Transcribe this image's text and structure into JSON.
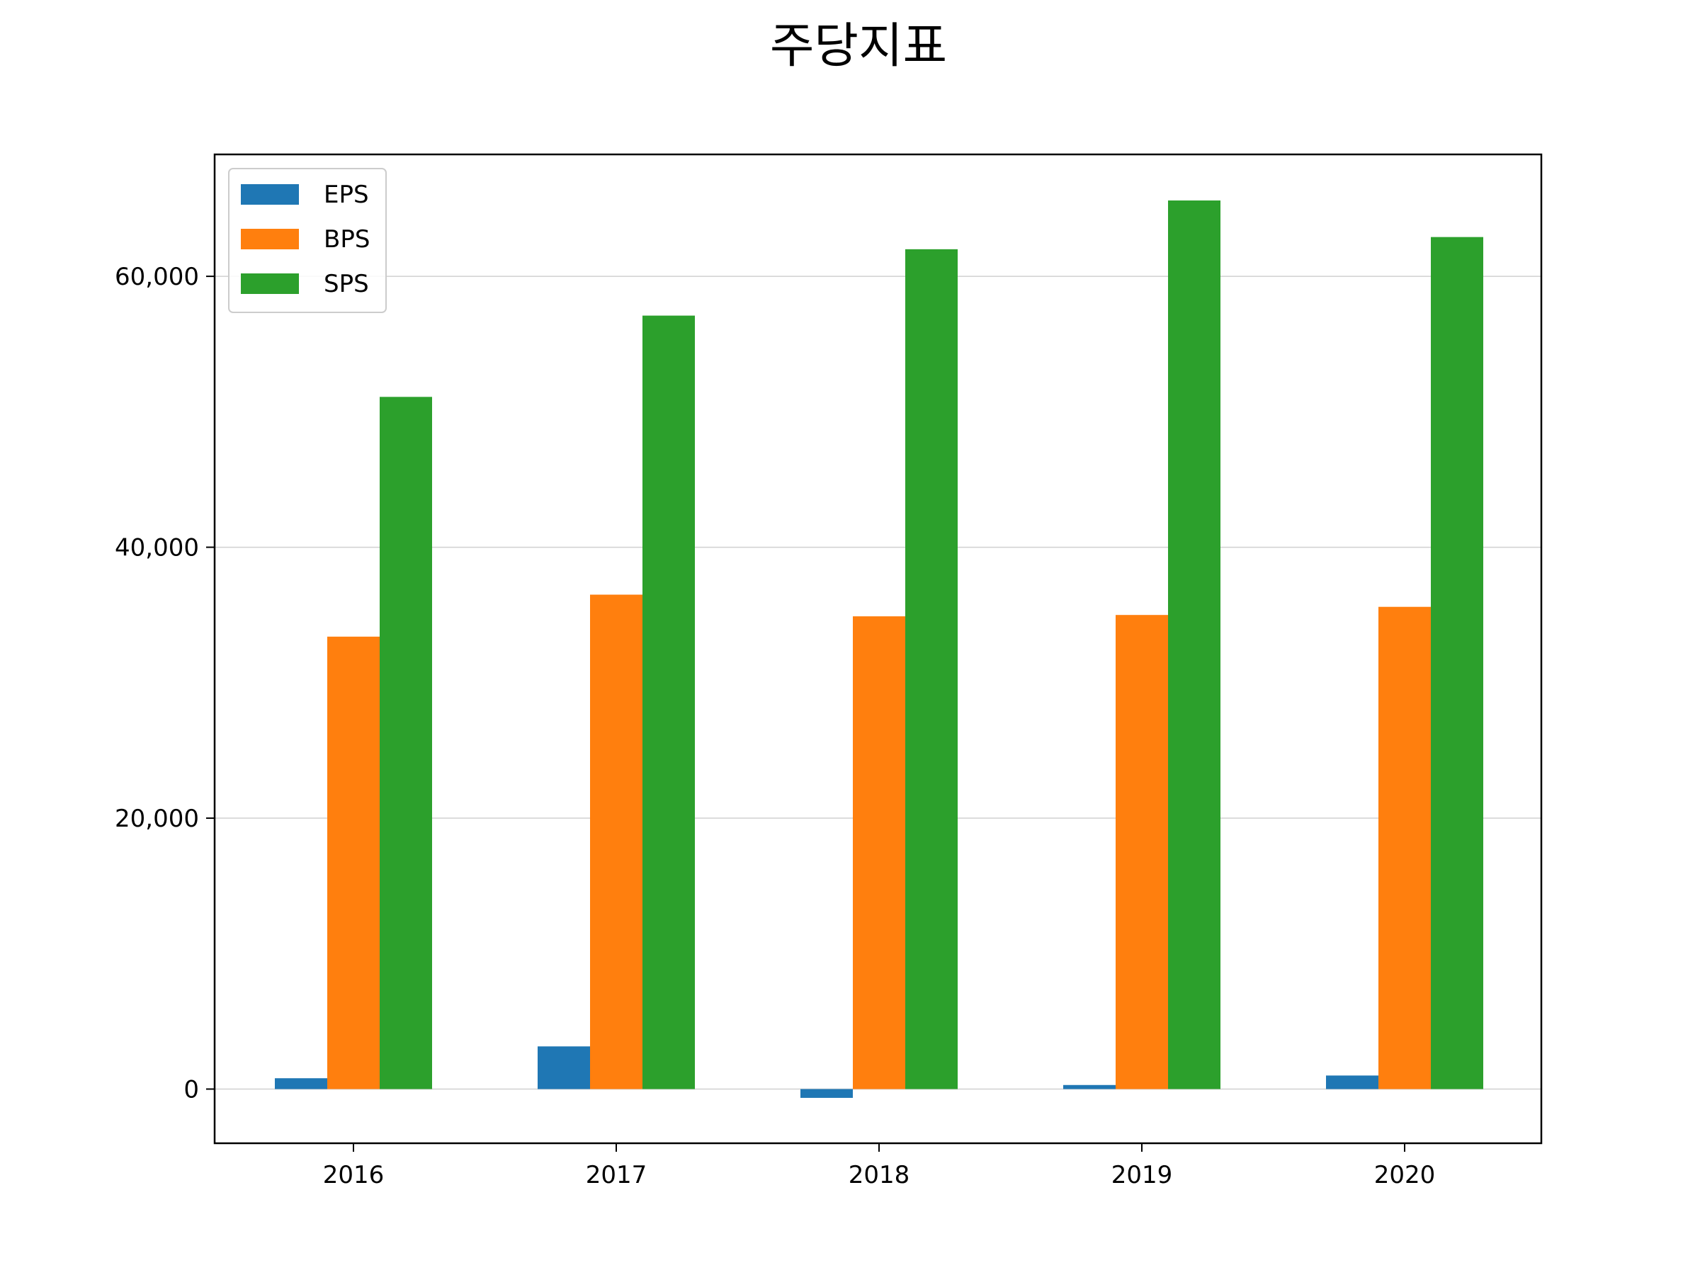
{
  "chart_data": {
    "type": "bar",
    "title": "주당지표",
    "xlabel": "",
    "ylabel": "",
    "categories": [
      "2016",
      "2017",
      "2018",
      "2019",
      "2020"
    ],
    "series": [
      {
        "name": "EPS",
        "color": "#1f77b4",
        "values": [
          800,
          3150,
          -650,
          300,
          1000
        ]
      },
      {
        "name": "BPS",
        "color": "#ff7f0e",
        "values": [
          33400,
          36500,
          34900,
          35000,
          35600
        ]
      },
      {
        "name": "SPS",
        "color": "#2ca02c",
        "values": [
          51100,
          57100,
          62000,
          65600,
          62900
        ]
      }
    ],
    "ylim": [
      -4000,
      69000
    ],
    "yticks": [
      0,
      20000,
      40000,
      60000
    ],
    "ytick_labels": [
      "0",
      "20,000",
      "40,000",
      "60,000"
    ],
    "grid": {
      "y": true,
      "x": false
    },
    "legend": {
      "placement": "top-left"
    }
  }
}
